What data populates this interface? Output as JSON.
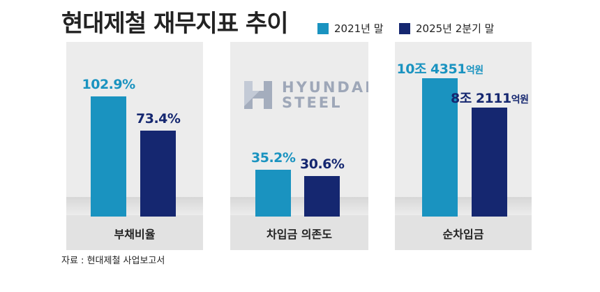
{
  "header": {
    "title": "현대제철 재무지표 추이"
  },
  "legend": [
    {
      "label": "2021년 말",
      "color": "#1a93c0"
    },
    {
      "label": "2025년 2분기 말",
      "color": "#152770"
    }
  ],
  "logo": {
    "line1": "HYUNDAI",
    "line2": "STEEL"
  },
  "chart_data": [
    {
      "type": "bar",
      "title": "부채비율",
      "categories": [
        "2021년 말",
        "2025년 2분기 말"
      ],
      "values": [
        102.9,
        73.4
      ],
      "unit": "%",
      "labels": [
        "102.9%",
        "73.4%"
      ]
    },
    {
      "type": "bar",
      "title": "차입금 의존도",
      "categories": [
        "2021년 말",
        "2025년 2분기 말"
      ],
      "values": [
        35.2,
        30.6
      ],
      "unit": "%",
      "labels": [
        "35.2%",
        "30.6%"
      ]
    },
    {
      "type": "bar",
      "title": "순차입금",
      "categories": [
        "2021년 말",
        "2025년 2분기 말"
      ],
      "values": [
        104351,
        82111
      ],
      "unit": "억원",
      "labels": [
        {
          "main": "10조 4351",
          "unit": "억원"
        },
        {
          "main": "8조 2111",
          "unit": "억원"
        }
      ]
    }
  ],
  "footer": {
    "source": "자료 : 현대제철 사업보고서"
  }
}
